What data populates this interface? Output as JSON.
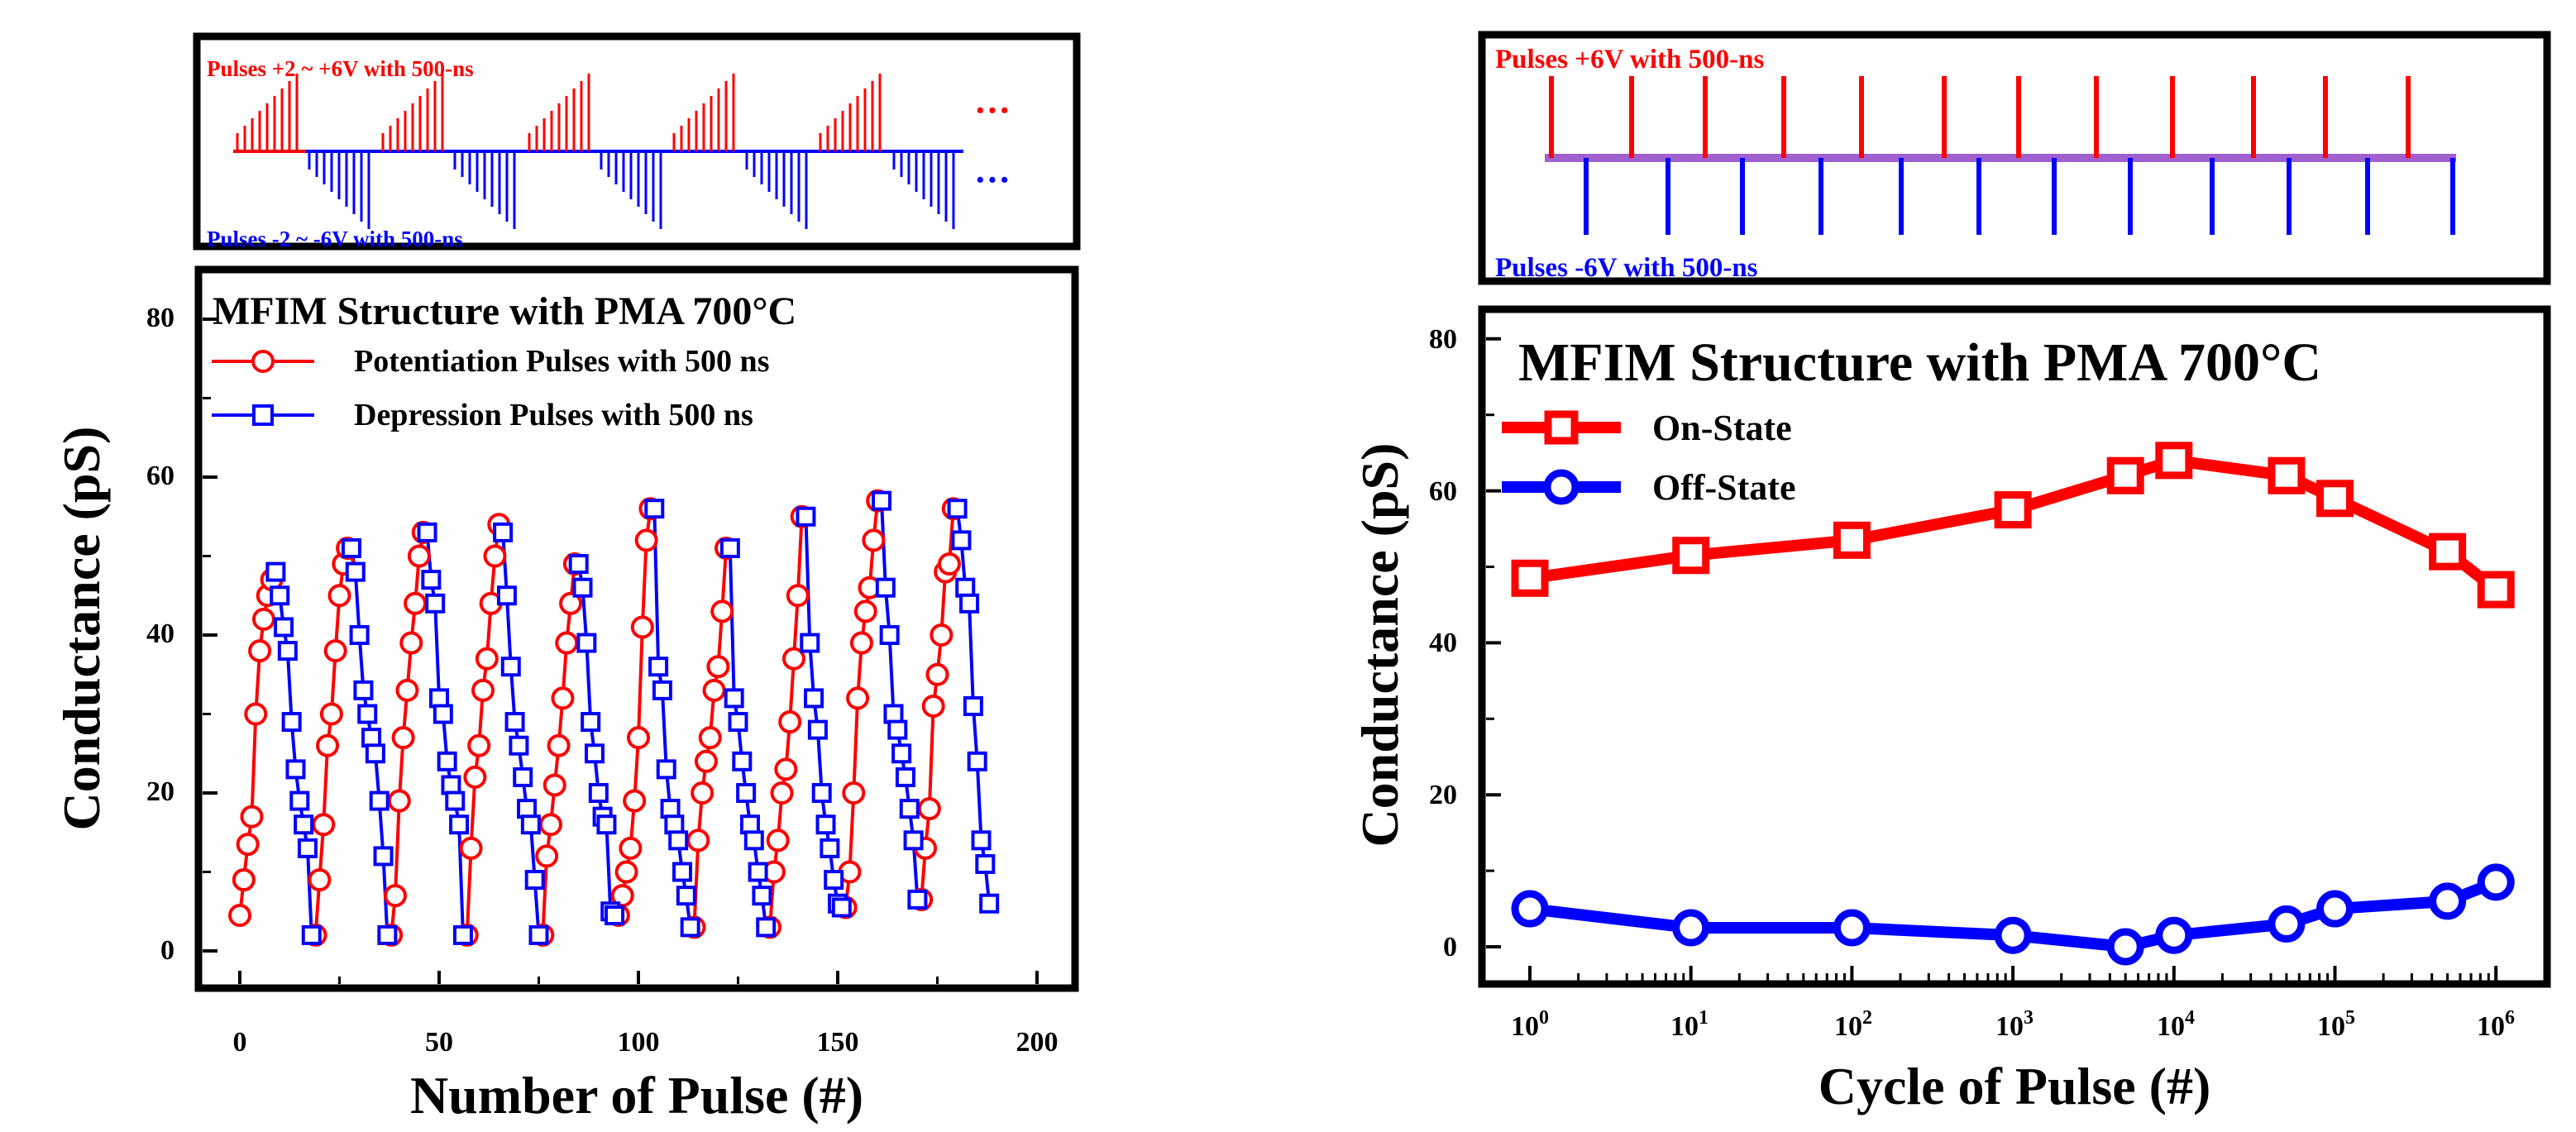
{
  "charts": [
    {
      "pulse_panel": {
        "pos_label": "Pulses +2 ~ +6V with 500-ns",
        "neg_label": "Pulses -2 ~ -6V with 500-ns",
        "ellipsis": "···",
        "pos_color": "#ff0000",
        "neg_color": "#0000ff"
      },
      "title": "MFIM Structure with PMA 700°C",
      "legend": [
        "Potentiation Pulses with 500 ns",
        "Depression Pulses with 500 ns"
      ],
      "xlabel": "Number of Pulse (#)",
      "ylabel": "Conductance (pS)",
      "xticks": [
        "0",
        "50",
        "100",
        "150",
        "200"
      ],
      "yticks": [
        "0",
        "20",
        "40",
        "60",
        "80"
      ]
    },
    {
      "pulse_panel": {
        "pos_label": "Pulses +6V with 500-ns",
        "neg_label": "Pulses -6V with 500-ns",
        "pos_color": "#ff0000",
        "neg_color": "#0000ff",
        "baseline_color": "#a060d0"
      },
      "title": "MFIM Structure with PMA 700°C",
      "legend": [
        "On-State",
        "Off-State"
      ],
      "xlabel": "Cycle of Pulse (#)",
      "ylabel": "Conductance (pS)",
      "xticks": [
        {
          "base": "10",
          "exp": "0"
        },
        {
          "base": "10",
          "exp": "1"
        },
        {
          "base": "10",
          "exp": "2"
        },
        {
          "base": "10",
          "exp": "3"
        },
        {
          "base": "10",
          "exp": "4"
        },
        {
          "base": "10",
          "exp": "5"
        },
        {
          "base": "10",
          "exp": "6"
        }
      ],
      "yticks": [
        "0",
        "20",
        "40",
        "60",
        "80"
      ]
    }
  ],
  "chart_data": [
    {
      "type": "line",
      "title": "MFIM Structure with PMA 700°C",
      "xlabel": "Number of Pulse (#)",
      "ylabel": "Conductance (pS)",
      "xlim": [
        -10,
        200
      ],
      "ylim": [
        -5,
        85
      ],
      "grid": false,
      "legend_position": "top-left",
      "series": [
        {
          "name": "Potentiation Pulses with 500 ns",
          "color": "#ff0000",
          "marker": "circle",
          "segments": [
            {
              "x": [
                0,
                1,
                2,
                3,
                4,
                5,
                6,
                7,
                8
              ],
              "y": [
                4.5,
                9,
                13.5,
                17,
                30,
                38,
                42,
                45,
                47
              ]
            },
            {
              "x": [
                19,
                20,
                21,
                22,
                23,
                24,
                25,
                26,
                27
              ],
              "y": [
                2,
                9,
                16,
                26,
                30,
                38,
                45,
                49,
                51
              ]
            },
            {
              "x": [
                38,
                39,
                40,
                41,
                42,
                43,
                44,
                45,
                46
              ],
              "y": [
                2,
                7,
                19,
                27,
                33,
                39,
                44,
                50,
                53
              ]
            },
            {
              "x": [
                57,
                58,
                59,
                60,
                61,
                62,
                63,
                64,
                65
              ],
              "y": [
                2,
                13,
                22,
                26,
                33,
                37,
                44,
                50,
                54
              ]
            },
            {
              "x": [
                76,
                77,
                78,
                79,
                80,
                81,
                82,
                83,
                84
              ],
              "y": [
                2,
                12,
                16,
                21,
                26,
                32,
                39,
                44,
                49
              ]
            },
            {
              "x": [
                95,
                96,
                97,
                98,
                99,
                100,
                101,
                102,
                103
              ],
              "y": [
                4.5,
                7,
                10,
                13,
                19,
                27,
                41,
                52,
                56
              ]
            },
            {
              "x": [
                114,
                115,
                116,
                117,
                118,
                119,
                120,
                121,
                122
              ],
              "y": [
                3,
                14,
                20,
                24,
                27,
                33,
                36,
                43,
                51
              ]
            },
            {
              "x": [
                133,
                134,
                135,
                136,
                137,
                138,
                139,
                140,
                141
              ],
              "y": [
                3,
                10,
                14,
                20,
                23,
                29,
                37,
                45,
                55
              ]
            },
            {
              "x": [
                152,
                153,
                154,
                155,
                156,
                157,
                158,
                159,
                160
              ],
              "y": [
                5.5,
                10,
                20,
                32,
                39,
                43,
                46,
                52,
                57
              ]
            },
            {
              "x": [
                171,
                172,
                173,
                174,
                175,
                176,
                177,
                178,
                179
              ],
              "y": [
                6.5,
                13,
                18,
                31,
                35,
                40,
                48,
                49,
                56
              ]
            }
          ]
        },
        {
          "name": "Depression Pulses with 500 ns",
          "color": "#0000ff",
          "marker": "square",
          "segments": [
            {
              "x": [
                9,
                10,
                11,
                12,
                13,
                14,
                15,
                16,
                17,
                18
              ],
              "y": [
                48,
                45,
                41,
                38,
                29,
                23,
                19,
                16,
                13,
                2
              ]
            },
            {
              "x": [
                28,
                29,
                30,
                31,
                32,
                33,
                34,
                35,
                36,
                37
              ],
              "y": [
                51,
                48,
                40,
                33,
                30,
                27,
                25,
                19,
                12,
                2
              ]
            },
            {
              "x": [
                47,
                48,
                49,
                50,
                51,
                52,
                53,
                54,
                55,
                56
              ],
              "y": [
                53,
                47,
                44,
                32,
                30,
                24,
                21,
                19,
                16,
                2
              ]
            },
            {
              "x": [
                66,
                67,
                68,
                69,
                70,
                71,
                72,
                73,
                74,
                75
              ],
              "y": [
                53,
                45,
                36,
                29,
                26,
                22,
                18,
                16,
                9,
                2
              ]
            },
            {
              "x": [
                85,
                86,
                87,
                88,
                89,
                90,
                91,
                92,
                93,
                94
              ],
              "y": [
                49,
                46,
                39,
                29,
                25,
                20,
                17,
                16,
                5,
                4.5
              ]
            },
            {
              "x": [
                104,
                105,
                106,
                107,
                108,
                109,
                110,
                111,
                112,
                113
              ],
              "y": [
                56,
                36,
                33,
                23,
                18,
                16,
                14,
                10,
                7,
                3
              ]
            },
            {
              "x": [
                123,
                124,
                125,
                126,
                127,
                128,
                129,
                130,
                131,
                132
              ],
              "y": [
                51,
                32,
                29,
                24,
                20,
                16,
                14,
                10,
                7,
                3
              ]
            },
            {
              "x": [
                142,
                143,
                144,
                145,
                146,
                147,
                148,
                149,
                150,
                151
              ],
              "y": [
                55,
                39,
                32,
                28,
                20,
                16,
                13,
                9,
                6,
                5.5
              ]
            },
            {
              "x": [
                161,
                162,
                163,
                164,
                165,
                166,
                167,
                168,
                169,
                170
              ],
              "y": [
                57,
                46,
                40,
                30,
                28,
                25,
                22,
                18,
                14,
                6.5
              ]
            },
            {
              "x": [
                180,
                181,
                182,
                183,
                184,
                185,
                186,
                187,
                188
              ],
              "y": [
                56,
                52,
                46,
                44,
                31,
                24,
                14,
                11,
                6
              ]
            }
          ]
        }
      ]
    },
    {
      "type": "line",
      "title": "MFIM Structure with PMA 700°C",
      "xlabel": "Cycle of Pulse (#)",
      "ylabel": "Conductance (pS)",
      "x_scale": "log",
      "xlim": [
        0.6,
        1500000
      ],
      "ylim": [
        -5,
        85
      ],
      "grid": false,
      "legend_position": "top-left",
      "x": [
        1,
        10,
        100,
        1000,
        5000,
        10000,
        50000,
        100000,
        500000,
        1000000
      ],
      "series": [
        {
          "name": "On-State",
          "color": "#ff0000",
          "marker": "square",
          "values": [
            48.5,
            51.5,
            53.5,
            57.5,
            62,
            64,
            62,
            59,
            52,
            47
          ]
        },
        {
          "name": "Off-State",
          "color": "#0000ff",
          "marker": "circle",
          "values": [
            5,
            2.5,
            2.5,
            1.5,
            0,
            1.5,
            3,
            5,
            6,
            8.5
          ]
        }
      ]
    }
  ]
}
